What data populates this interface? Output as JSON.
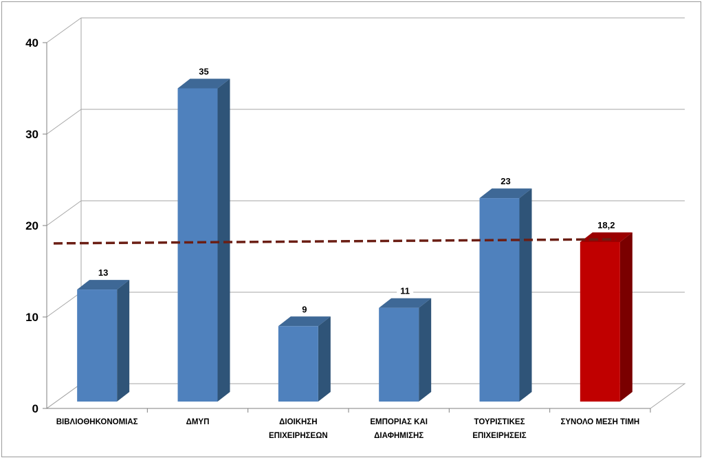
{
  "chart_data": {
    "type": "bar",
    "categories": [
      [
        "ΒΙΒΛΙΟΘΗΚΟΝΟΜΙΑΣ"
      ],
      [
        "ΔΜΥΠ"
      ],
      [
        "ΔΙΟΙΚΗΣΗ",
        "ΕΠΙΧΕΙΡΗΣΕΩΝ"
      ],
      [
        "ΕΜΠΟΡΙΑΣ ΚΑΙ",
        "ΔΙΑΦΗΜΙΣΗΣ"
      ],
      [
        "ΤΟΥΡΙΣΤΙΚΕΣ",
        "ΕΠΙΧΕΙΡΗΣΕΙΣ"
      ],
      [
        "ΣΥΝΟΛΟ ΜΕΣΗ ΤΙΜΗ"
      ]
    ],
    "values": [
      13,
      35,
      9,
      11,
      23,
      18.2
    ],
    "data_labels": [
      "13",
      "35",
      "9",
      "11",
      "23",
      "18,2"
    ],
    "ylim": [
      0,
      40
    ],
    "y_ticks": [
      0,
      10,
      20,
      30,
      40
    ],
    "average_line": 18.2,
    "grid": true,
    "three_d": true,
    "colors": {
      "bar": "#4f81bd",
      "bar_top": "#3e6896",
      "bar_side": "#2f5478",
      "highlight": "#c00000",
      "highlight_top": "#9b0000",
      "highlight_side": "#7a0000",
      "average_line": "#6b1e14",
      "grid": "#a6a6a6"
    }
  }
}
